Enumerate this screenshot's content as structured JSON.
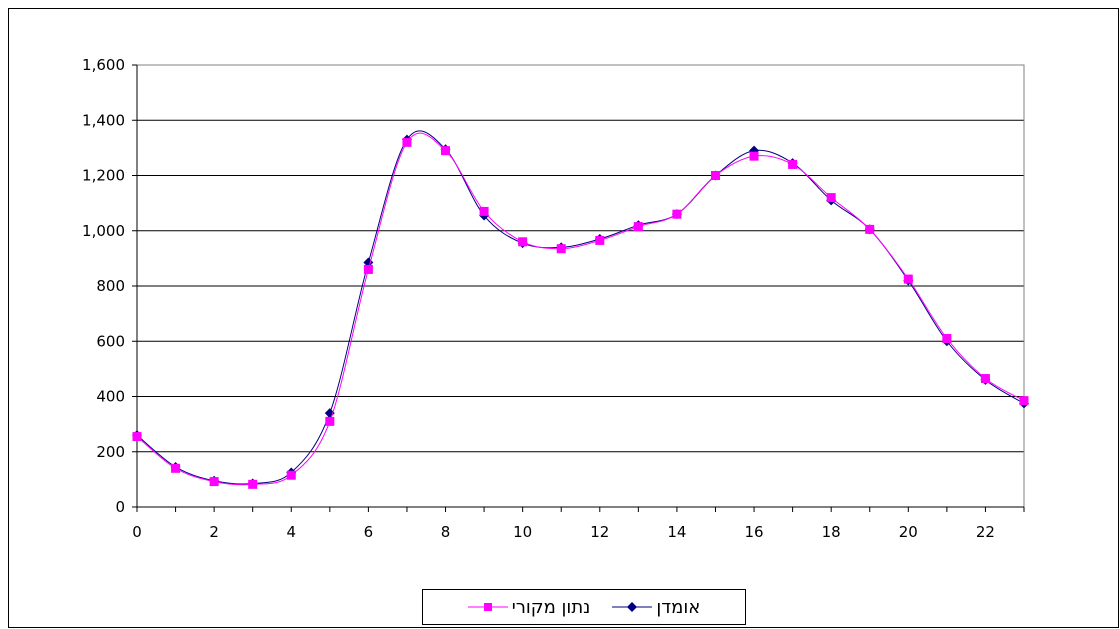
{
  "chart_data": {
    "type": "line",
    "title": "",
    "xlabel": "",
    "ylabel": "",
    "xlim": [
      0,
      23
    ],
    "ylim": [
      0,
      1600
    ],
    "x_ticks": [
      0,
      2,
      4,
      6,
      8,
      10,
      12,
      14,
      16,
      18,
      20,
      22
    ],
    "y_ticks": [
      0,
      200,
      400,
      600,
      800,
      1000,
      1200,
      1400,
      1600
    ],
    "y_tick_labels": [
      "0",
      "200",
      "400",
      "600",
      "800",
      "1,000",
      "1,200",
      "1,400",
      "1,600"
    ],
    "grid": "horizontal",
    "legend_position": "bottom",
    "x": [
      0,
      1,
      2,
      3,
      4,
      5,
      6,
      7,
      8,
      9,
      10,
      11,
      12,
      13,
      14,
      15,
      16,
      17,
      18,
      19,
      20,
      21,
      22,
      23
    ],
    "series": [
      {
        "name": "אומדן",
        "color": "#000080",
        "marker": "diamond",
        "values": [
          260,
          145,
          95,
          85,
          125,
          340,
          885,
          1330,
          1295,
          1055,
          955,
          940,
          970,
          1020,
          1060,
          1200,
          1290,
          1245,
          1110,
          1005,
          820,
          600,
          460,
          375
        ]
      },
      {
        "name": "נתון מקורי",
        "color": "#ff00ff",
        "marker": "square",
        "values": [
          255,
          140,
          92,
          82,
          115,
          310,
          860,
          1320,
          1290,
          1070,
          960,
          935,
          965,
          1015,
          1060,
          1200,
          1270,
          1240,
          1120,
          1005,
          825,
          610,
          465,
          385
        ]
      }
    ]
  }
}
